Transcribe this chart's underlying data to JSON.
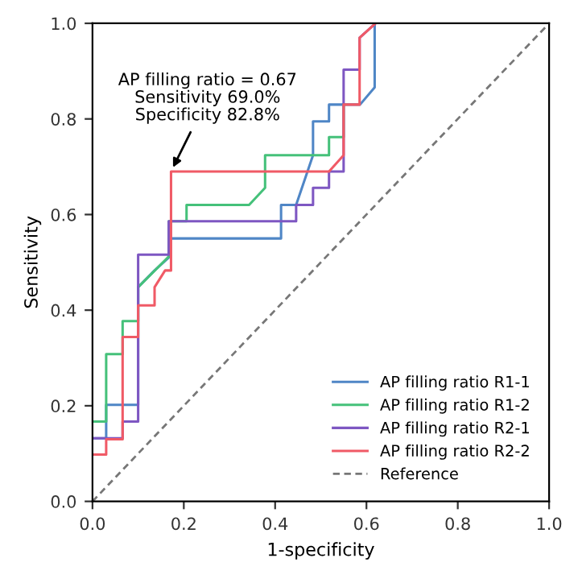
{
  "chart_data": {
    "type": "line",
    "xlabel": "1-specificity",
    "ylabel": "Sensitivity",
    "xlim": [
      0,
      1
    ],
    "ylim": [
      0,
      1
    ],
    "xticks": [
      {
        "value": 0,
        "label": "0.0"
      },
      0.2,
      0.4,
      0.6,
      0.8,
      {
        "value": 1,
        "label": "1.0"
      }
    ],
    "yticks": [
      {
        "value": 0,
        "label": "0.0"
      },
      0.2,
      0.4,
      0.6,
      0.8,
      {
        "value": 1,
        "label": "1.0"
      }
    ],
    "grid": false,
    "legend": "bottom right",
    "marker": "none",
    "line_style": "solid",
    "annotations": [
      {
        "text": "AP filling ratio = 0.67\nSensitivity 69.0%\nSpecificity 82.8%",
        "x": 0.172,
        "y": 0.69
      }
    ],
    "series": [
      {
        "name": "AP filling ratio R1-1",
        "color": "#4f86c6",
        "x": [
          0,
          0.03,
          0.03,
          0.1,
          0.1,
          0.136,
          0.167,
          0.167,
          0.413,
          0.413,
          0.446,
          0.483,
          0.483,
          0.518,
          0.518,
          0.586,
          0.618,
          0.618
        ],
        "values": [
          0.132,
          0.132,
          0.202,
          0.202,
          0.448,
          0.483,
          0.51,
          0.55,
          0.55,
          0.62,
          0.62,
          0.724,
          0.795,
          0.795,
          0.83,
          0.83,
          0.866,
          1.0
        ]
      },
      {
        "name": "AP filling ratio R1-2",
        "color": "#45c17a",
        "x": [
          0,
          0.03,
          0.03,
          0.066,
          0.066,
          0.1,
          0.1,
          0.167,
          0.167,
          0.206,
          0.206,
          0.343,
          0.378,
          0.378,
          0.518,
          0.518,
          0.55,
          0.55
        ],
        "values": [
          0.167,
          0.167,
          0.308,
          0.308,
          0.377,
          0.377,
          0.448,
          0.512,
          0.586,
          0.586,
          0.62,
          0.62,
          0.656,
          0.724,
          0.724,
          0.762,
          0.762,
          0.83
        ]
      },
      {
        "name": "AP filling ratio R2-1",
        "color": "#7e57c2",
        "x": [
          0,
          0.066,
          0.066,
          0.1,
          0.1,
          0.167,
          0.167,
          0.446,
          0.446,
          0.483,
          0.483,
          0.518,
          0.518,
          0.55,
          0.55,
          0.585,
          0.585,
          0.62
        ],
        "values": [
          0.132,
          0.132,
          0.167,
          0.167,
          0.516,
          0.516,
          0.586,
          0.586,
          0.62,
          0.62,
          0.656,
          0.656,
          0.69,
          0.69,
          0.903,
          0.903,
          0.97,
          1.0
        ]
      },
      {
        "name": "AP filling ratio R2-2",
        "color": "#f05a66",
        "x": [
          0,
          0.03,
          0.03,
          0.066,
          0.066,
          0.1,
          0.1,
          0.136,
          0.136,
          0.159,
          0.172,
          0.172,
          0.518,
          0.55,
          0.55,
          0.585,
          0.585,
          0.62
        ],
        "values": [
          0.098,
          0.098,
          0.13,
          0.13,
          0.344,
          0.344,
          0.41,
          0.41,
          0.448,
          0.483,
          0.483,
          0.69,
          0.69,
          0.724,
          0.83,
          0.83,
          0.97,
          1.0
        ]
      },
      {
        "name": "Reference",
        "color": "#777777",
        "line_style": "dashed",
        "x": [
          0,
          1
        ],
        "values": [
          0,
          1
        ]
      }
    ]
  }
}
